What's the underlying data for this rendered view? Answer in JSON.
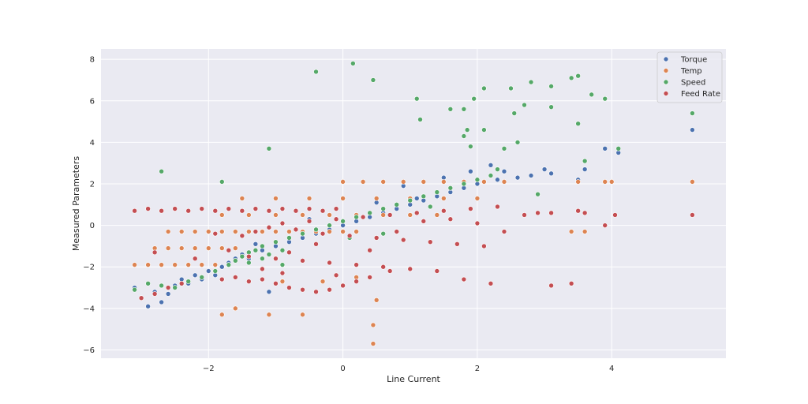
{
  "chart_data": {
    "type": "scatter",
    "title": "",
    "xlabel": "Line Current",
    "ylabel": "Measured Parameters",
    "xlim": [
      -3.6,
      5.7
    ],
    "ylim": [
      -6.4,
      8.5
    ],
    "xticks": [
      -2,
      0,
      2,
      4
    ],
    "yticks": [
      -6,
      -4,
      -2,
      0,
      2,
      4,
      6,
      8
    ],
    "grid": true,
    "legend_position": "top-right",
    "series": [
      {
        "name": "Torque",
        "color": "#4c72b0",
        "points": [
          [
            -3.1,
            -3.0
          ],
          [
            -3.0,
            -3.5
          ],
          [
            -2.9,
            -3.9
          ],
          [
            -2.8,
            -3.2
          ],
          [
            -2.7,
            -3.7
          ],
          [
            -2.6,
            -3.3
          ],
          [
            -2.5,
            -2.9
          ],
          [
            -2.4,
            -2.6
          ],
          [
            -2.3,
            -2.8
          ],
          [
            -2.2,
            -2.4
          ],
          [
            -2.1,
            -2.6
          ],
          [
            -2.0,
            -2.2
          ],
          [
            -1.9,
            -2.4
          ],
          [
            -1.8,
            -2.0
          ],
          [
            -1.7,
            -1.8
          ],
          [
            -1.6,
            -1.6
          ],
          [
            -1.5,
            -1.4
          ],
          [
            -1.4,
            -1.6
          ],
          [
            -1.2,
            -1.2
          ],
          [
            -1.1,
            -3.2
          ],
          [
            -1.0,
            -1.0
          ],
          [
            -0.8,
            -0.8
          ],
          [
            -0.6,
            -0.6
          ],
          [
            -0.4,
            -0.4
          ],
          [
            -0.2,
            -0.2
          ],
          [
            0.0,
            0.0
          ],
          [
            0.2,
            0.2
          ],
          [
            0.4,
            0.4
          ],
          [
            0.6,
            0.6
          ],
          [
            0.8,
            0.8
          ],
          [
            1.0,
            1.0
          ],
          [
            1.2,
            1.2
          ],
          [
            1.4,
            1.4
          ],
          [
            1.6,
            1.6
          ],
          [
            1.8,
            1.8
          ],
          [
            2.0,
            2.0
          ],
          [
            2.2,
            2.9
          ],
          [
            2.4,
            2.6
          ],
          [
            2.6,
            2.3
          ],
          [
            2.8,
            2.4
          ],
          [
            3.0,
            2.7
          ],
          [
            3.1,
            2.5
          ],
          [
            3.5,
            2.2
          ],
          [
            3.6,
            2.7
          ],
          [
            3.9,
            3.7
          ],
          [
            4.1,
            3.5
          ],
          [
            5.2,
            4.6
          ],
          [
            1.9,
            2.6
          ],
          [
            1.5,
            2.3
          ],
          [
            0.9,
            1.9
          ],
          [
            1.1,
            1.3
          ],
          [
            2.3,
            2.2
          ],
          [
            -0.5,
            0.3
          ],
          [
            -1.3,
            -0.9
          ],
          [
            0.5,
            1.1
          ]
        ]
      },
      {
        "name": "Temp",
        "color": "#dd8452",
        "points": [
          [
            -3.1,
            -1.9
          ],
          [
            -2.9,
            -1.9
          ],
          [
            -2.7,
            -1.9
          ],
          [
            -2.5,
            -1.9
          ],
          [
            -2.3,
            -1.9
          ],
          [
            -2.1,
            -1.9
          ],
          [
            -1.9,
            -1.9
          ],
          [
            -1.7,
            -1.9
          ],
          [
            -2.8,
            -1.1
          ],
          [
            -2.6,
            -1.1
          ],
          [
            -2.4,
            -1.1
          ],
          [
            -2.2,
            -1.1
          ],
          [
            -2.0,
            -1.1
          ],
          [
            -1.8,
            -1.1
          ],
          [
            -1.6,
            -1.1
          ],
          [
            -2.6,
            -0.3
          ],
          [
            -2.4,
            -0.3
          ],
          [
            -2.2,
            -0.3
          ],
          [
            -2.0,
            -0.3
          ],
          [
            -1.8,
            -0.3
          ],
          [
            -1.6,
            -0.3
          ],
          [
            -1.4,
            -0.3
          ],
          [
            -1.2,
            -0.3
          ],
          [
            -1.0,
            -0.3
          ],
          [
            -0.8,
            -0.3
          ],
          [
            -0.6,
            -0.3
          ],
          [
            -0.4,
            -0.3
          ],
          [
            -0.2,
            -0.3
          ],
          [
            0.0,
            -0.3
          ],
          [
            0.2,
            -0.3
          ],
          [
            -1.8,
            0.5
          ],
          [
            -1.4,
            0.5
          ],
          [
            -1.0,
            0.5
          ],
          [
            -0.6,
            0.5
          ],
          [
            -0.2,
            0.5
          ],
          [
            0.2,
            0.5
          ],
          [
            0.6,
            0.5
          ],
          [
            1.0,
            0.5
          ],
          [
            1.4,
            0.5
          ],
          [
            -1.5,
            1.3
          ],
          [
            -1.0,
            1.3
          ],
          [
            -0.5,
            1.3
          ],
          [
            0.0,
            1.3
          ],
          [
            0.5,
            1.3
          ],
          [
            1.0,
            1.3
          ],
          [
            1.5,
            1.3
          ],
          [
            2.0,
            1.3
          ],
          [
            0.0,
            2.1
          ],
          [
            0.3,
            2.1
          ],
          [
            0.6,
            2.1
          ],
          [
            0.9,
            2.1
          ],
          [
            1.2,
            2.1
          ],
          [
            1.5,
            2.1
          ],
          [
            1.8,
            2.1
          ],
          [
            2.1,
            2.1
          ],
          [
            2.4,
            2.1
          ],
          [
            3.5,
            2.1
          ],
          [
            3.9,
            2.1
          ],
          [
            4.0,
            2.1
          ],
          [
            5.2,
            2.1
          ],
          [
            -1.8,
            -4.3
          ],
          [
            -1.6,
            -4.0
          ],
          [
            -1.1,
            -4.3
          ],
          [
            -0.6,
            -4.3
          ],
          [
            0.5,
            -3.6
          ],
          [
            0.45,
            -4.8
          ],
          [
            0.45,
            -5.7
          ],
          [
            -0.3,
            -2.7
          ],
          [
            0.2,
            -2.5
          ],
          [
            -0.9,
            -2.7
          ],
          [
            3.4,
            -0.3
          ],
          [
            3.6,
            -0.3
          ]
        ]
      },
      {
        "name": "Speed",
        "color": "#55a868",
        "points": [
          [
            -3.1,
            -3.1
          ],
          [
            -2.9,
            -2.8
          ],
          [
            -2.7,
            -2.9
          ],
          [
            -2.5,
            -3.0
          ],
          [
            -2.3,
            -2.7
          ],
          [
            -2.1,
            -2.5
          ],
          [
            -1.9,
            -2.2
          ],
          [
            -1.7,
            -1.9
          ],
          [
            -1.6,
            -1.7
          ],
          [
            -1.5,
            -1.5
          ],
          [
            -1.4,
            -1.3
          ],
          [
            -1.3,
            -1.2
          ],
          [
            -1.2,
            -1.0
          ],
          [
            -1.1,
            -1.4
          ],
          [
            -1.0,
            -0.8
          ],
          [
            -0.9,
            -1.2
          ],
          [
            -0.8,
            -0.6
          ],
          [
            -0.6,
            -0.4
          ],
          [
            -0.4,
            -0.2
          ],
          [
            -0.2,
            0.0
          ],
          [
            0.0,
            0.2
          ],
          [
            0.2,
            0.4
          ],
          [
            0.4,
            0.6
          ],
          [
            0.6,
            0.8
          ],
          [
            0.8,
            1.0
          ],
          [
            1.0,
            1.2
          ],
          [
            1.2,
            1.4
          ],
          [
            1.4,
            1.6
          ],
          [
            1.6,
            1.8
          ],
          [
            1.8,
            2.0
          ],
          [
            2.0,
            2.2
          ],
          [
            2.2,
            2.4
          ],
          [
            -2.7,
            2.6
          ],
          [
            -1.8,
            2.1
          ],
          [
            -1.1,
            3.7
          ],
          [
            -0.4,
            7.4
          ],
          [
            0.15,
            7.8
          ],
          [
            0.45,
            7.0
          ],
          [
            1.1,
            6.1
          ],
          [
            1.15,
            5.1
          ],
          [
            1.6,
            5.6
          ],
          [
            1.8,
            5.6
          ],
          [
            1.95,
            6.1
          ],
          [
            2.1,
            6.6
          ],
          [
            2.5,
            6.6
          ],
          [
            2.8,
            6.9
          ],
          [
            3.1,
            6.7
          ],
          [
            3.4,
            7.1
          ],
          [
            3.5,
            7.2
          ],
          [
            3.7,
            6.3
          ],
          [
            3.9,
            6.1
          ],
          [
            5.2,
            5.4
          ],
          [
            3.5,
            4.9
          ],
          [
            3.1,
            5.7
          ],
          [
            2.1,
            4.6
          ],
          [
            1.85,
            4.6
          ],
          [
            1.8,
            4.3
          ],
          [
            1.9,
            3.8
          ],
          [
            2.4,
            3.7
          ],
          [
            2.6,
            4.0
          ],
          [
            2.7,
            5.8
          ],
          [
            2.55,
            5.4
          ],
          [
            3.6,
            3.1
          ],
          [
            4.1,
            3.7
          ],
          [
            -1.4,
            -1.8
          ],
          [
            -1.2,
            -1.6
          ],
          [
            -0.9,
            -1.9
          ],
          [
            0.1,
            -0.6
          ],
          [
            0.6,
            -0.4
          ],
          [
            1.3,
            0.9
          ],
          [
            2.3,
            2.7
          ],
          [
            2.9,
            1.5
          ]
        ]
      },
      {
        "name": "Feed Rate",
        "color": "#c44e52",
        "points": [
          [
            -3.1,
            0.7
          ],
          [
            -2.9,
            0.8
          ],
          [
            -2.7,
            0.7
          ],
          [
            -2.5,
            0.8
          ],
          [
            -2.3,
            0.7
          ],
          [
            -2.1,
            0.8
          ],
          [
            -1.9,
            0.7
          ],
          [
            -1.7,
            0.8
          ],
          [
            -1.5,
            0.7
          ],
          [
            -1.3,
            0.8
          ],
          [
            -1.1,
            0.7
          ],
          [
            -0.9,
            0.8
          ],
          [
            -0.7,
            0.7
          ],
          [
            -0.5,
            0.8
          ],
          [
            -0.3,
            0.7
          ],
          [
            -0.1,
            0.8
          ],
          [
            -1.8,
            -2.6
          ],
          [
            -1.6,
            -2.5
          ],
          [
            -1.4,
            -2.7
          ],
          [
            -1.2,
            -2.6
          ],
          [
            -1.0,
            -2.8
          ],
          [
            -0.8,
            -3.0
          ],
          [
            -0.6,
            -3.1
          ],
          [
            -0.4,
            -3.2
          ],
          [
            -0.2,
            -3.1
          ],
          [
            0.0,
            -2.9
          ],
          [
            0.2,
            -2.7
          ],
          [
            0.4,
            -2.5
          ],
          [
            -3.0,
            -3.5
          ],
          [
            -2.8,
            -3.3
          ],
          [
            -2.6,
            -3.0
          ],
          [
            -2.4,
            -2.8
          ],
          [
            -1.5,
            -0.5
          ],
          [
            -1.3,
            -0.3
          ],
          [
            -1.1,
            -0.1
          ],
          [
            -0.9,
            0.1
          ],
          [
            -0.7,
            -0.2
          ],
          [
            -0.5,
            0.2
          ],
          [
            -0.3,
            -0.4
          ],
          [
            -0.1,
            0.3
          ],
          [
            0.1,
            -0.5
          ],
          [
            0.3,
            0.4
          ],
          [
            0.5,
            -0.6
          ],
          [
            0.7,
            0.5
          ],
          [
            0.9,
            -0.7
          ],
          [
            1.1,
            0.6
          ],
          [
            1.3,
            -0.8
          ],
          [
            1.5,
            0.7
          ],
          [
            1.7,
            -0.9
          ],
          [
            1.9,
            0.8
          ],
          [
            2.1,
            -1.0
          ],
          [
            2.3,
            0.9
          ],
          [
            -1.4,
            -1.5
          ],
          [
            -1.0,
            -1.6
          ],
          [
            -0.6,
            -1.7
          ],
          [
            -0.2,
            -1.8
          ],
          [
            0.2,
            -1.9
          ],
          [
            0.6,
            -2.0
          ],
          [
            1.0,
            -2.1
          ],
          [
            1.4,
            -2.2
          ],
          [
            1.8,
            -2.6
          ],
          [
            2.2,
            -2.8
          ],
          [
            3.1,
            -2.9
          ],
          [
            3.4,
            -2.8
          ],
          [
            3.1,
            0.6
          ],
          [
            3.5,
            0.7
          ],
          [
            3.6,
            0.6
          ],
          [
            3.9,
            0.0
          ],
          [
            4.05,
            0.5
          ],
          [
            5.2,
            0.5
          ],
          [
            2.9,
            0.6
          ],
          [
            2.7,
            0.5
          ],
          [
            -1.9,
            -0.4
          ],
          [
            -1.7,
            -1.2
          ],
          [
            -1.2,
            -2.1
          ],
          [
            -0.8,
            -1.3
          ],
          [
            -0.4,
            -0.9
          ],
          [
            0.4,
            -1.2
          ],
          [
            0.8,
            -0.3
          ],
          [
            1.2,
            0.2
          ],
          [
            1.6,
            0.3
          ],
          [
            2.0,
            0.1
          ],
          [
            2.4,
            -0.3
          ],
          [
            -2.8,
            -1.3
          ],
          [
            -2.2,
            -1.6
          ],
          [
            -0.9,
            -2.3
          ],
          [
            -0.1,
            -2.4
          ],
          [
            0.7,
            -2.2
          ]
        ]
      }
    ]
  }
}
